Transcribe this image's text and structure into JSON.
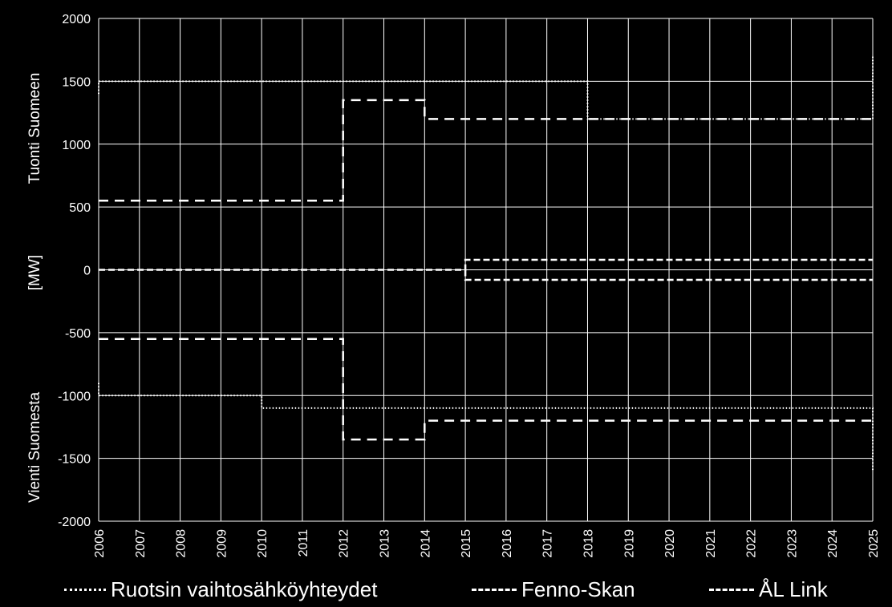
{
  "chart_data": {
    "type": "line",
    "title": "",
    "ylabel_unit": "[MW]",
    "ylabel_top": "Tuonti Suomeen",
    "ylabel_bottom": "Vienti Suomesta",
    "xlim": [
      2006,
      2025
    ],
    "ylim": [
      -2000,
      2000
    ],
    "x_ticks": [
      "2006",
      "2007",
      "2008",
      "2009",
      "2010",
      "2011",
      "2012",
      "2013",
      "2014",
      "2015",
      "2016",
      "2017",
      "2018",
      "2019",
      "2020",
      "2021",
      "2022",
      "2023",
      "2024",
      "2025"
    ],
    "y_ticks": [
      2000,
      1500,
      1000,
      500,
      0,
      -500,
      -1000,
      -1500,
      -2000
    ],
    "grid": true,
    "legend_position": "bottom",
    "colors": {
      "background": "#000000",
      "lines": "#ffffff",
      "grid": "#ffffff"
    },
    "series": [
      {
        "name": "Ruotsin vaihtosähköyhteydet",
        "style": "dotted",
        "lines": [
          {
            "points": [
              [
                2006,
                1400
              ],
              [
                2006,
                1500
              ],
              [
                2018,
                1500
              ],
              [
                2018,
                1200
              ],
              [
                2025,
                1200
              ],
              [
                2025,
                1700
              ]
            ]
          },
          {
            "points": [
              [
                2006,
                -900
              ],
              [
                2006,
                -1000
              ],
              [
                2010,
                -1000
              ],
              [
                2010,
                -1100
              ],
              [
                2025,
                -1100
              ],
              [
                2025,
                -1600
              ]
            ]
          }
        ]
      },
      {
        "name": "Fenno-Skan",
        "style": "dashed",
        "lines": [
          {
            "points": [
              [
                2006,
                550
              ],
              [
                2012,
                550
              ],
              [
                2012,
                1350
              ],
              [
                2014,
                1350
              ],
              [
                2014,
                1200
              ],
              [
                2025,
                1200
              ]
            ]
          },
          {
            "points": [
              [
                2006,
                -550
              ],
              [
                2012,
                -550
              ],
              [
                2012,
                -1350
              ],
              [
                2014,
                -1350
              ],
              [
                2014,
                -1200
              ],
              [
                2025,
                -1200
              ]
            ]
          }
        ]
      },
      {
        "name": "ÅL Link",
        "style": "short-dashed",
        "lines": [
          {
            "points": [
              [
                2006,
                0
              ],
              [
                2015,
                0
              ],
              [
                2015,
                80
              ],
              [
                2025,
                80
              ]
            ]
          },
          {
            "points": [
              [
                2015,
                0
              ],
              [
                2015,
                -80
              ],
              [
                2025,
                -80
              ]
            ]
          }
        ]
      }
    ]
  }
}
